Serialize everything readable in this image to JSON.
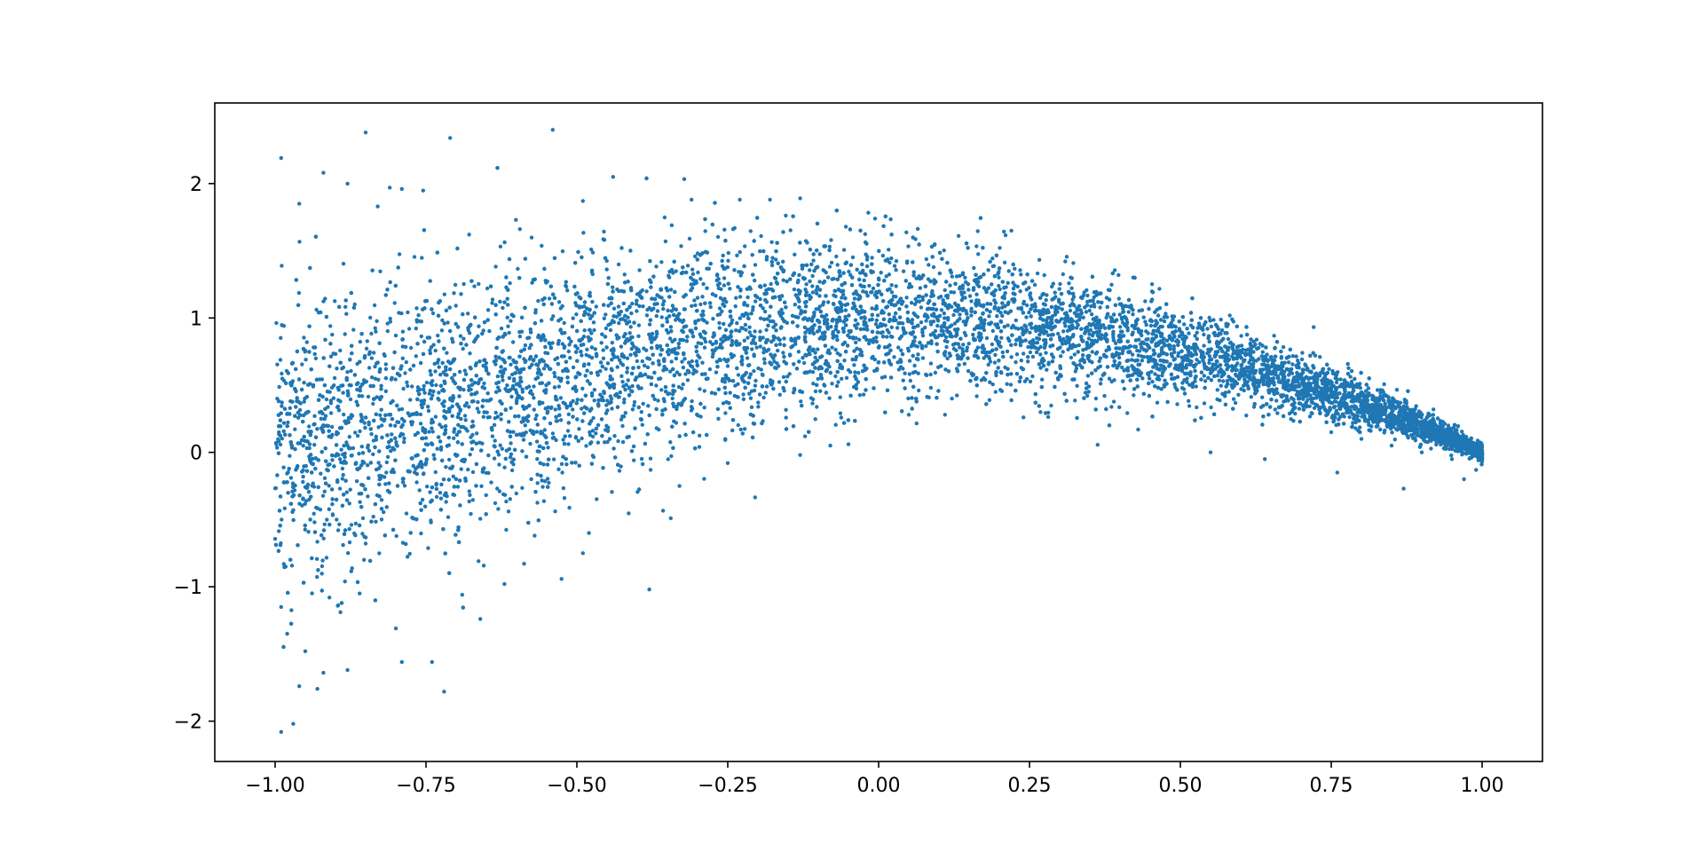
{
  "chart_data": {
    "type": "scatter",
    "title": "",
    "xlabel": "",
    "ylabel": "",
    "xlim": [
      -1.1,
      1.1
    ],
    "ylim": [
      -2.3,
      2.6
    ],
    "x_ticks": [
      -1.0,
      -0.75,
      -0.5,
      -0.25,
      0.0,
      0.25,
      0.5,
      0.75,
      1.0
    ],
    "x_tick_labels": [
      "−1.00",
      "−0.75",
      "−0.50",
      "−0.25",
      "0.00",
      "0.25",
      "0.50",
      "0.75",
      "1.00"
    ],
    "y_ticks": [
      -2,
      -1,
      0,
      1,
      2
    ],
    "y_tick_labels": [
      "−2",
      "−1",
      "0",
      "1",
      "2"
    ],
    "grid": false,
    "legend": "none",
    "marker_color": "#1f77b4",
    "series": [
      {
        "points": [
          [
            -0.99,
            2.19
          ],
          [
            -0.85,
            2.38
          ],
          [
            -0.71,
            2.34
          ],
          [
            -0.54,
            2.4
          ],
          [
            -0.44,
            2.05
          ],
          [
            -0.92,
            2.08
          ],
          [
            -0.88,
            2.0
          ],
          [
            -0.81,
            1.97
          ],
          [
            -0.79,
            1.96
          ],
          [
            -0.96,
            1.85
          ],
          [
            -0.83,
            1.83
          ],
          [
            -0.49,
            1.87
          ],
          [
            -0.23,
            1.88
          ],
          [
            -0.13,
            1.89
          ],
          [
            -0.31,
            1.88
          ],
          [
            -0.18,
            1.88
          ],
          [
            0.22,
            1.65
          ],
          [
            -0.99,
            -2.08
          ],
          [
            -0.97,
            -2.02
          ],
          [
            -0.72,
            -1.78
          ],
          [
            -0.96,
            -1.74
          ],
          [
            -0.93,
            -1.76
          ],
          [
            -0.74,
            -1.56
          ],
          [
            -0.79,
            -1.56
          ],
          [
            -0.88,
            -1.62
          ],
          [
            -0.92,
            -1.64
          ],
          [
            -0.66,
            -1.24
          ],
          [
            -0.38,
            -1.02
          ],
          [
            -0.69,
            -1.06
          ],
          [
            -0.62,
            -0.98
          ],
          [
            -0.49,
            -0.75
          ],
          [
            -0.99,
            -1.15
          ],
          [
            -0.98,
            -1.35
          ],
          [
            -0.95,
            -1.48
          ],
          [
            -0.91,
            -1.08
          ],
          [
            -0.86,
            -1.05
          ],
          [
            -0.8,
            -1.31
          ],
          [
            -0.57,
            -0.62
          ],
          [
            -0.48,
            -0.6
          ],
          [
            -0.33,
            -0.25
          ],
          [
            -0.25,
            -0.08
          ],
          [
            -0.13,
            -0.02
          ],
          [
            -0.05,
            0.06
          ],
          [
            0.05,
            0.28
          ],
          [
            0.11,
            0.28
          ],
          [
            0.24,
            0.26
          ],
          [
            0.43,
            0.17
          ],
          [
            0.55,
            0.0
          ],
          [
            0.64,
            -0.05
          ],
          [
            0.76,
            -0.15
          ],
          [
            0.87,
            -0.27
          ],
          [
            0.97,
            -0.2
          ],
          [
            0.99,
            -0.13
          ],
          [
            0.95,
            -0.05
          ],
          [
            0.9,
            0.0
          ],
          [
            0.85,
            0.05
          ],
          [
            0.8,
            0.1
          ],
          [
            0.75,
            0.15
          ]
        ]
      }
    ]
  }
}
